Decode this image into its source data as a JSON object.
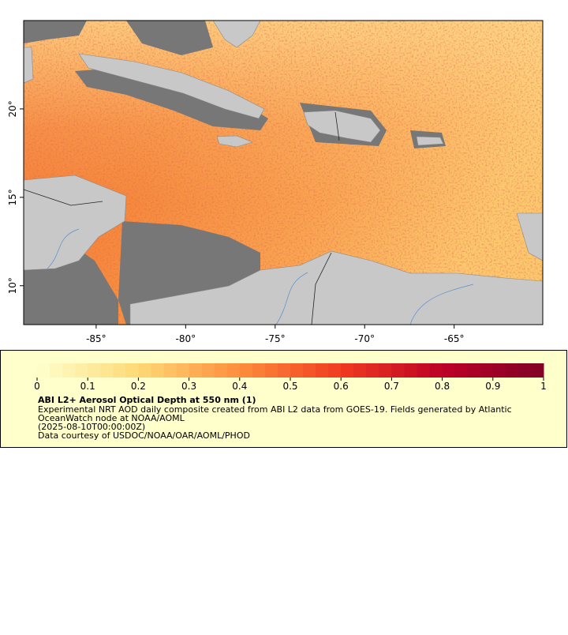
{
  "chart_data": {
    "type": "map",
    "xlim": [
      -89.05,
      -60.05
    ],
    "ylim": [
      7.8,
      25
    ],
    "xticks": [
      {
        "value": -85,
        "label": "-85°"
      },
      {
        "value": -80,
        "label": "-80°"
      },
      {
        "value": -75,
        "label": "-75°"
      },
      {
        "value": -70,
        "label": "-70°"
      },
      {
        "value": -65,
        "label": "-65°"
      }
    ],
    "yticks": [
      {
        "value": 10,
        "label": "10°"
      },
      {
        "value": 15,
        "label": "15°"
      },
      {
        "value": 20,
        "label": "20°"
      }
    ],
    "colorbar": {
      "lim": [
        0,
        1
      ],
      "ticks": [
        0,
        0.1,
        0.2,
        0.3,
        0.4,
        0.5,
        0.6,
        0.7,
        0.8,
        0.9,
        1
      ],
      "colormap": [
        "#ffffcc",
        "#fed976",
        "#fd8d3c",
        "#f03b20",
        "#bd0026",
        "#800026"
      ]
    },
    "legend": {
      "title": "ABI L2+ Aerosol Optical Depth at 550 nm (1)",
      "lines": [
        "Experimental NRT AOD daily composite created from ABI L2 data from GOES-19. Fields generated by Atlantic",
        "OceanWatch node at NOAA/AOML",
        "(2025-08-10T00:00:00Z)",
        "Data courtesy of USDOC/NOAA/OAR/AOML/PHOD"
      ]
    }
  }
}
